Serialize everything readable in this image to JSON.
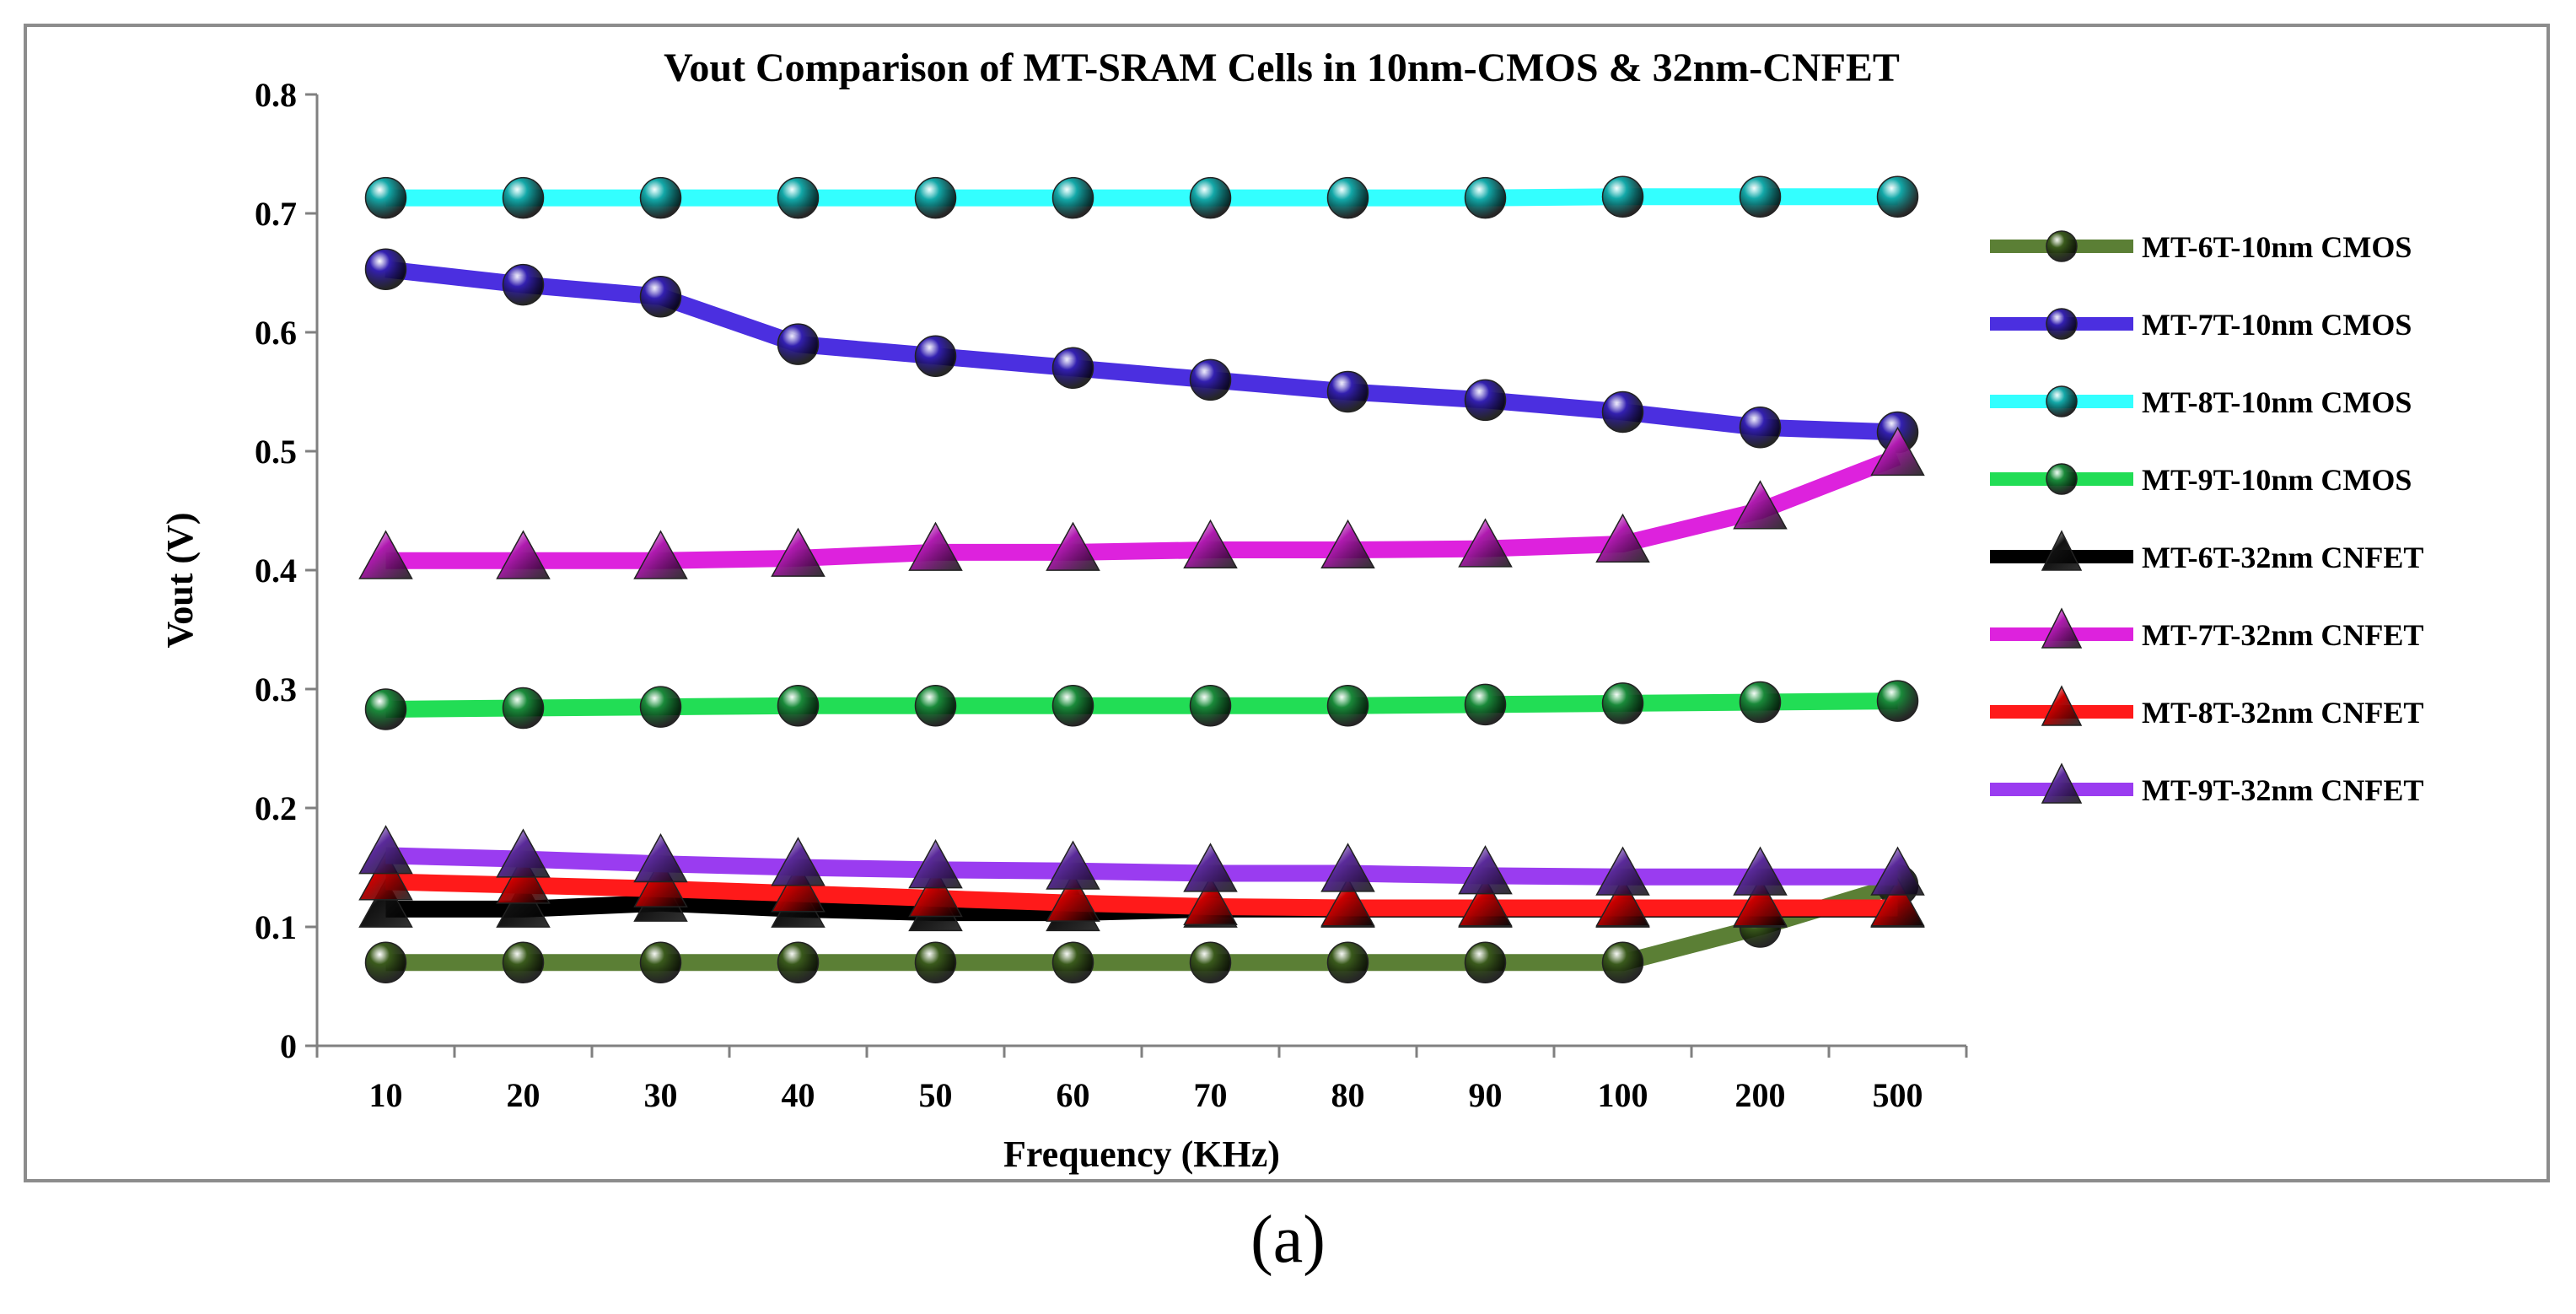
{
  "caption": "(a)",
  "chart_data": {
    "type": "line",
    "title": "Vout Comparison of MT-SRAM Cells in 10nm-CMOS & 32nm-CNFET",
    "xlabel": "Frequency (KHz)",
    "ylabel": "Vout (V)",
    "ylim": [
      0,
      0.8
    ],
    "yticks": [
      "0",
      "0.1",
      "0.2",
      "0.3",
      "0.4",
      "0.5",
      "0.6",
      "0.7",
      "0.8"
    ],
    "ytick_values": [
      0,
      0.1,
      0.2,
      0.3,
      0.4,
      0.5,
      0.6,
      0.7,
      0.8
    ],
    "categories": [
      "10",
      "20",
      "30",
      "40",
      "50",
      "60",
      "70",
      "80",
      "90",
      "100",
      "200",
      "500"
    ],
    "grid": false,
    "legend_position": "right",
    "series": [
      {
        "name": "MT-6T-10nm CMOS",
        "color": "#5b7f35",
        "marker_color": "#3a5a1c",
        "marker": "sphere",
        "values": [
          0.07,
          0.07,
          0.07,
          0.07,
          0.07,
          0.07,
          0.07,
          0.07,
          0.07,
          0.07,
          0.1,
          0.135
        ]
      },
      {
        "name": "MT-7T-10nm CMOS",
        "color": "#4b2fe0",
        "marker_color": "#3320b0",
        "marker": "sphere",
        "values": [
          0.653,
          0.64,
          0.63,
          0.59,
          0.58,
          0.57,
          0.56,
          0.55,
          0.543,
          0.533,
          0.52,
          0.516
        ]
      },
      {
        "name": "MT-8T-10nm CMOS",
        "color": "#33ffff",
        "marker_color": "#13a8a8",
        "marker": "sphere",
        "values": [
          0.713,
          0.713,
          0.713,
          0.713,
          0.713,
          0.713,
          0.713,
          0.713,
          0.713,
          0.714,
          0.714,
          0.714
        ]
      },
      {
        "name": "MT-9T-10nm CMOS",
        "color": "#22dd55",
        "marker_color": "#1a8a3a",
        "marker": "sphere",
        "values": [
          0.283,
          0.284,
          0.285,
          0.286,
          0.286,
          0.286,
          0.286,
          0.286,
          0.287,
          0.288,
          0.289,
          0.29
        ]
      },
      {
        "name": "MT-6T-32nm CNFET",
        "color": "#000000",
        "marker_color": "#111111",
        "marker": "triangle",
        "values": [
          0.115,
          0.115,
          0.12,
          0.115,
          0.112,
          0.112,
          0.115,
          0.115,
          0.115,
          0.115,
          0.115,
          0.115
        ]
      },
      {
        "name": "MT-7T-32nm CNFET",
        "color": "#dd22dd",
        "marker_color": "#b01ab0",
        "marker": "triangle",
        "values": [
          0.408,
          0.408,
          0.408,
          0.41,
          0.415,
          0.415,
          0.417,
          0.417,
          0.418,
          0.422,
          0.45,
          0.495
        ]
      },
      {
        "name": "MT-8T-32nm CNFET",
        "color": "#ff1a1a",
        "marker_color": "#cc0000",
        "marker": "triangle",
        "values": [
          0.138,
          0.135,
          0.132,
          0.128,
          0.124,
          0.12,
          0.117,
          0.116,
          0.116,
          0.116,
          0.116,
          0.116
        ]
      },
      {
        "name": "MT-9T-32nm CNFET",
        "color": "#9a3cf0",
        "marker_color": "#5a2a9a",
        "marker": "triangle",
        "values": [
          0.16,
          0.157,
          0.153,
          0.15,
          0.148,
          0.147,
          0.145,
          0.145,
          0.143,
          0.142,
          0.142,
          0.142
        ]
      }
    ]
  }
}
